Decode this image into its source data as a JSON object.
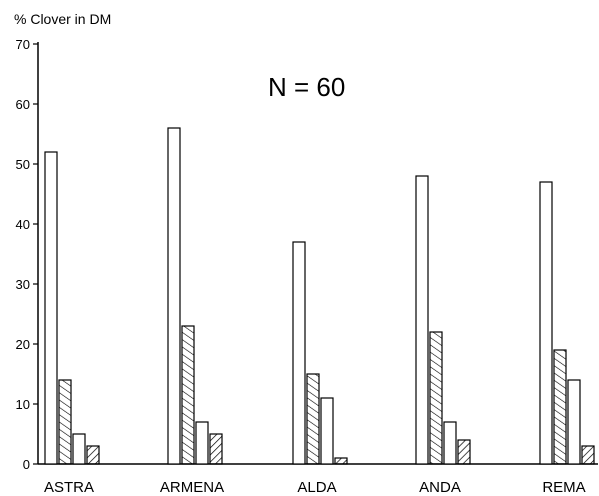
{
  "chart_data": {
    "type": "bar",
    "title": "",
    "ylabel": "% Clover in DM",
    "xlabel": "",
    "annotation": "N = 60",
    "ylim": [
      0,
      70
    ],
    "yticks": [
      0,
      10,
      20,
      30,
      40,
      50,
      60,
      70
    ],
    "grid": false,
    "categories": [
      "ASTRA",
      "ARMENA",
      "ALDA",
      "ANDA",
      "REMA"
    ],
    "series": [
      {
        "pattern": "open",
        "values": [
          52,
          56,
          37,
          48,
          47
        ]
      },
      {
        "pattern": "hatch-right",
        "values": [
          14,
          23,
          15,
          22,
          19
        ]
      },
      {
        "pattern": "open",
        "values": [
          5,
          7,
          11,
          7,
          14
        ]
      },
      {
        "pattern": "hatch-left",
        "values": [
          3,
          5,
          1,
          4,
          3
        ]
      }
    ]
  }
}
